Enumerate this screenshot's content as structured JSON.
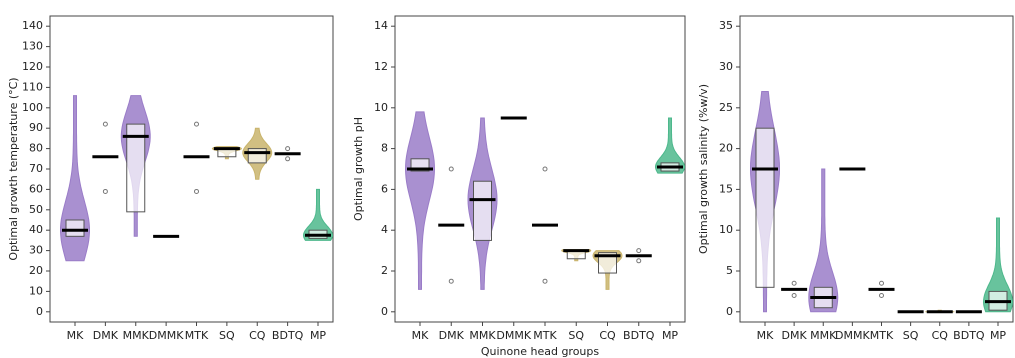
{
  "chart_data": [
    {
      "type": "violin",
      "ylabel": "Optimal growth temperature (°C)",
      "categories": [
        "MK",
        "DMK",
        "MMK",
        "DMMK",
        "MTK",
        "SQ",
        "CQ",
        "BDTQ",
        "MP"
      ],
      "colors": [
        "#9a7cc8",
        null,
        "#9a7cc8",
        null,
        null,
        "#c9b46c",
        "#c9b46c",
        null,
        "#4db88c"
      ],
      "stats": [
        {
          "min": 25,
          "q1": 37,
          "median": 40,
          "q3": 45,
          "max": 106
        },
        {
          "min": 59,
          "median": 76,
          "max": 92
        },
        {
          "min": 37,
          "q1": 49,
          "median": 86,
          "q3": 92,
          "max": 106
        },
        {
          "median": 37
        },
        {
          "min": 59,
          "median": 76,
          "max": 92
        },
        {
          "min": 75,
          "q1": 76,
          "median": 80,
          "q3": 80,
          "max": 81
        },
        {
          "min": 65,
          "q1": 73,
          "median": 78,
          "q3": 80,
          "max": 90
        },
        {
          "min": 75,
          "median": 77.5,
          "max": 80
        },
        {
          "min": 35,
          "q1": 36,
          "median": 37.5,
          "q3": 40,
          "max": 60
        }
      ],
      "ylim": [
        -5,
        145
      ],
      "yticks": [
        0,
        10,
        20,
        30,
        40,
        50,
        60,
        70,
        80,
        90,
        100,
        110,
        120,
        130,
        140
      ]
    },
    {
      "type": "violin",
      "ylabel": "Optimal growth pH",
      "xlabel": "Quinone head groups",
      "categories": [
        "MK",
        "DMK",
        "MMK",
        "DMMK",
        "MTK",
        "SQ",
        "CQ",
        "BDTQ",
        "MP"
      ],
      "colors": [
        "#9a7cc8",
        null,
        "#9a7cc8",
        null,
        null,
        "#c9b46c",
        "#c9b46c",
        null,
        "#4db88c"
      ],
      "stats": [
        {
          "min": 1.1,
          "q1": 6.9,
          "median": 7.0,
          "q3": 7.5,
          "max": 9.8
        },
        {
          "min": 1.5,
          "median": 4.25,
          "max": 7
        },
        {
          "min": 1.1,
          "q1": 3.5,
          "median": 5.5,
          "q3": 6.4,
          "max": 9.5
        },
        {
          "median": 9.5
        },
        {
          "min": 1.5,
          "median": 4.25,
          "max": 7
        },
        {
          "min": 2.5,
          "q1": 2.6,
          "median": 3.0,
          "q3": 3.0,
          "max": 3.05
        },
        {
          "min": 1.1,
          "q1": 1.9,
          "median": 2.75,
          "q3": 2.9,
          "max": 3.0
        },
        {
          "min": 2.5,
          "median": 2.75,
          "max": 3.0
        },
        {
          "min": 6.8,
          "q1": 6.9,
          "median": 7.1,
          "q3": 7.3,
          "max": 9.5
        }
      ],
      "ylim": [
        -0.5,
        14.5
      ],
      "yticks": [
        0,
        2,
        4,
        6,
        8,
        10,
        12,
        14
      ]
    },
    {
      "type": "violin",
      "ylabel": "Optimal growth salinity (%w/v)",
      "categories": [
        "MK",
        "DMK",
        "MMK",
        "DMMK",
        "MTK",
        "SQ",
        "CQ",
        "BDTQ",
        "MP"
      ],
      "colors": [
        "#9a7cc8",
        null,
        "#9a7cc8",
        null,
        null,
        "#c9b46c",
        "#c9b46c",
        null,
        "#4db88c"
      ],
      "stats": [
        {
          "min": 0,
          "q1": 3,
          "median": 17.5,
          "q3": 22.5,
          "max": 27
        },
        {
          "min": 2,
          "median": 2.75,
          "max": 3.5
        },
        {
          "min": 0,
          "q1": 0.5,
          "median": 1.75,
          "q3": 3,
          "max": 17.5
        },
        {
          "median": 17.5
        },
        {
          "min": 2,
          "median": 2.75,
          "max": 3.5
        },
        {
          "median": 0
        },
        {
          "min": 0,
          "median": 0,
          "max": 0.2
        },
        {
          "median": 0
        },
        {
          "min": 0,
          "q1": 0.2,
          "median": 1.25,
          "q3": 2.5,
          "max": 11.5
        }
      ],
      "ylim": [
        -1.25,
        36.25
      ],
      "yticks": [
        0,
        5,
        10,
        15,
        20,
        25,
        30,
        35
      ]
    }
  ]
}
